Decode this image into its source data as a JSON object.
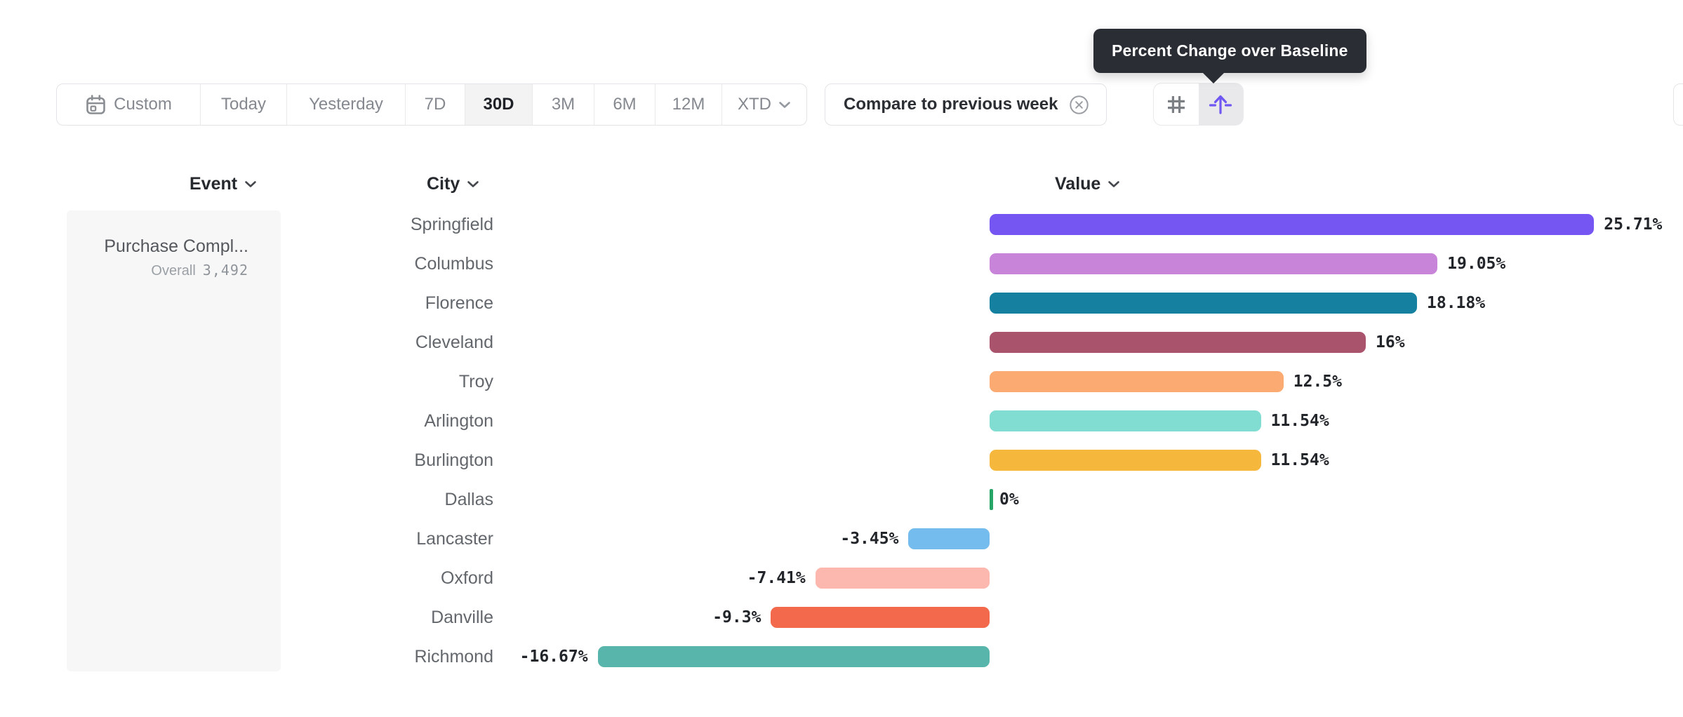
{
  "tooltip": {
    "text": "Percent Change over Baseline"
  },
  "toolbar": {
    "date_ranges": [
      {
        "label": "Custom",
        "icon": "calendar-icon",
        "selected": false
      },
      {
        "label": "Today",
        "selected": false
      },
      {
        "label": "Yesterday",
        "selected": false
      },
      {
        "label": "7D",
        "selected": false
      },
      {
        "label": "30D",
        "selected": true
      },
      {
        "label": "3M",
        "selected": false
      },
      {
        "label": "6M",
        "selected": false
      },
      {
        "label": "12M",
        "selected": false
      },
      {
        "label": "XTD",
        "icon": "chevron-down-icon",
        "selected": false
      }
    ],
    "compare": {
      "label": "Compare to previous week",
      "icon": "remove-icon"
    },
    "view_toggles": [
      {
        "icon": "grid-icon",
        "selected": false
      },
      {
        "icon": "percent-change-pivot-icon",
        "selected": true,
        "accent": "#6f58f2"
      }
    ]
  },
  "columns": {
    "event": "Event",
    "city": "City",
    "value": "Value"
  },
  "event_panel": {
    "event_name": "Purchase Compl...",
    "overall_label": "Overall",
    "overall_value": "3,492"
  },
  "chart_data": {
    "type": "bar",
    "orientation": "horizontal",
    "title": "Percent Change over Baseline",
    "unit": "%",
    "baseline": 0,
    "xlim": [
      -18,
      27
    ],
    "categories": [
      "Springfield",
      "Columbus",
      "Florence",
      "Cleveland",
      "Troy",
      "Arlington",
      "Burlington",
      "Dallas",
      "Lancaster",
      "Oxford",
      "Danville",
      "Richmond"
    ],
    "values": [
      25.71,
      19.05,
      18.18,
      16,
      12.5,
      11.54,
      11.54,
      0,
      -3.45,
      -7.41,
      -9.3,
      -16.67
    ],
    "labels": [
      "25.71%",
      "19.05%",
      "18.18%",
      "16%",
      "12.5%",
      "11.54%",
      "11.54%",
      "0%",
      "-3.45%",
      "-7.41%",
      "-9.3%",
      "-16.67%"
    ],
    "colors": [
      "#7656f2",
      "#c884d8",
      "#15809f",
      "#a9536d",
      "#fbab71",
      "#81dcd2",
      "#f5b83d",
      "#27a567",
      "#74bced",
      "#fcb7ae",
      "#f2694c",
      "#58b5ab"
    ]
  }
}
